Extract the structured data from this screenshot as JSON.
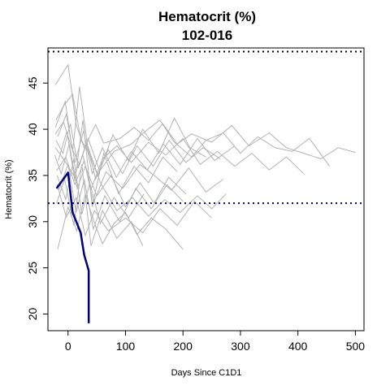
{
  "chart_data": {
    "type": "line",
    "title": "Hematocrit (%)",
    "subtitle": "102-016",
    "xlabel": "Days Since C1D1",
    "ylabel": "Hematocrit (%)",
    "xlim": [
      -35,
      515
    ],
    "ylim": [
      18.2,
      48.8
    ],
    "x_ticks": [
      0,
      100,
      200,
      300,
      400,
      500
    ],
    "y_ticks": [
      20,
      25,
      30,
      35,
      40,
      45
    ],
    "reference_lines": [
      {
        "y": 48.4,
        "style": "dotted",
        "color": "#000000"
      },
      {
        "y": 32.0,
        "style": "dotted",
        "color": "#00008b"
      }
    ],
    "highlight_color": "#00007f",
    "background_color": "#b3b3b3",
    "highlight_series": {
      "name": "102-016",
      "x": [
        -20,
        0,
        8,
        22,
        28,
        36,
        36
      ],
      "y": [
        33.6,
        35.3,
        31.0,
        28.8,
        26.4,
        24.7,
        19.0
      ]
    },
    "background_series": [
      {
        "x": [
          -22,
          -10,
          0,
          14,
          28,
          48,
          62,
          90,
          115,
          140,
          165,
          190,
          215,
          250,
          285,
          315,
          350,
          380,
          410,
          440,
          470,
          500
        ],
        "y": [
          44.8,
          46.0,
          47.0,
          40.5,
          38.0,
          40.5,
          38.5,
          39.0,
          40.2,
          38.8,
          40.6,
          38.4,
          39.5,
          38.6,
          40.4,
          38.2,
          39.6,
          38.0,
          37.4,
          36.8,
          38.0,
          37.5
        ]
      },
      {
        "x": [
          -22,
          -8,
          6,
          20,
          35,
          55,
          80,
          110,
          135,
          160,
          185,
          215,
          240,
          270,
          300,
          330,
          360,
          390,
          420,
          455
        ],
        "y": [
          39.5,
          40.8,
          38.0,
          36.2,
          39.0,
          35.5,
          37.6,
          38.4,
          39.8,
          41.0,
          38.6,
          37.0,
          38.8,
          39.6,
          37.4,
          39.2,
          38.0,
          37.6,
          39.0,
          36.0
        ]
      },
      {
        "x": [
          -22,
          -6,
          10,
          26,
          40,
          60,
          85,
          110,
          140,
          170,
          200,
          230,
          260,
          290,
          320,
          350,
          380,
          410
        ],
        "y": [
          38.0,
          36.6,
          35.0,
          37.2,
          33.5,
          36.8,
          38.2,
          36.4,
          38.6,
          37.2,
          39.0,
          36.2,
          37.6,
          36.0,
          37.4,
          35.6,
          37.0,
          35.2
        ]
      },
      {
        "x": [
          -20,
          -4,
          12,
          28,
          44,
          66,
          95,
          125,
          150,
          180,
          210,
          240,
          270
        ],
        "y": [
          35.5,
          37.0,
          34.0,
          36.6,
          32.0,
          35.4,
          33.6,
          36.2,
          35.0,
          33.4,
          35.8,
          33.2,
          34.6
        ]
      },
      {
        "x": [
          -21,
          -7,
          8,
          22,
          38,
          58,
          85,
          112,
          140,
          168,
          195,
          225,
          250,
          275
        ],
        "y": [
          41.0,
          42.6,
          43.8,
          39.0,
          37.2,
          34.0,
          31.2,
          32.6,
          30.6,
          32.4,
          31.0,
          32.8,
          31.4,
          33.0
        ]
      },
      {
        "x": [
          -19,
          -3,
          14,
          30,
          46,
          70,
          100,
          130,
          160,
          190,
          220,
          250
        ],
        "y": [
          34.0,
          30.5,
          32.6,
          28.5,
          31.2,
          29.0,
          30.4,
          28.8,
          31.4,
          29.6,
          32.2,
          30.4
        ]
      },
      {
        "x": [
          -18,
          0,
          15,
          30,
          45,
          60,
          80,
          100,
          120,
          145,
          170,
          200
        ],
        "y": [
          27.0,
          31.6,
          29.0,
          33.0,
          30.0,
          27.6,
          29.8,
          31.0,
          28.6,
          30.4,
          29.2,
          27.0
        ]
      },
      {
        "x": [
          -23,
          -12,
          2,
          16,
          30,
          50,
          75,
          100,
          125,
          150,
          175,
          205
        ],
        "y": [
          37.2,
          35.2,
          38.4,
          33.6,
          36.0,
          32.8,
          35.0,
          31.6,
          34.2,
          32.0,
          34.8,
          33.0
        ]
      },
      {
        "x": [
          -20,
          -6,
          10,
          24,
          40,
          60,
          85,
          110,
          130
        ],
        "y": [
          32.0,
          34.6,
          29.6,
          36.2,
          27.4,
          31.2,
          28.2,
          30.0,
          27.4
        ]
      },
      {
        "x": [
          -17,
          -2,
          12,
          26,
          42,
          62,
          88,
          115,
          140,
          165,
          190
        ],
        "y": [
          36.6,
          39.8,
          34.4,
          41.0,
          31.6,
          37.4,
          33.0,
          36.0,
          34.2,
          37.0,
          35.4
        ]
      },
      {
        "x": [
          -22,
          -5,
          8,
          20,
          34,
          52,
          78,
          105,
          130,
          158,
          185,
          212,
          240
        ],
        "y": [
          40.2,
          43.0,
          37.6,
          44.6,
          38.2,
          35.0,
          39.4,
          36.6,
          40.0,
          37.4,
          41.2,
          38.0,
          37.0
        ]
      },
      {
        "x": [
          -16,
          0,
          14,
          28,
          44,
          64,
          90,
          118,
          145,
          172,
          200
        ],
        "y": [
          33.4,
          36.2,
          31.0,
          34.6,
          29.2,
          32.8,
          30.0,
          33.6,
          31.4,
          34.0,
          32.2
        ]
      },
      {
        "x": [
          -21,
          -9,
          4,
          18,
          32,
          48,
          70,
          95,
          120,
          148,
          176,
          205,
          235,
          265
        ],
        "y": [
          38.8,
          37.4,
          40.6,
          35.8,
          38.6,
          34.6,
          37.8,
          35.2,
          38.2,
          36.0,
          38.8,
          36.4,
          38.0,
          36.8
        ]
      },
      {
        "x": [
          -19,
          -4,
          10,
          24,
          38,
          56,
          80,
          105,
          132
        ],
        "y": [
          35.0,
          32.4,
          36.8,
          30.8,
          34.2,
          29.8,
          32.6,
          30.4,
          33.0
        ]
      },
      {
        "x": [
          -18,
          -3,
          12,
          27,
          42,
          60,
          84,
          110,
          138,
          166,
          195,
          225,
          255,
          290
        ],
        "y": [
          39.2,
          41.6,
          36.4,
          39.8,
          35.2,
          38.0,
          34.8,
          37.6,
          35.6,
          38.4,
          36.2,
          39.0,
          36.6,
          38.2
        ]
      }
    ]
  }
}
